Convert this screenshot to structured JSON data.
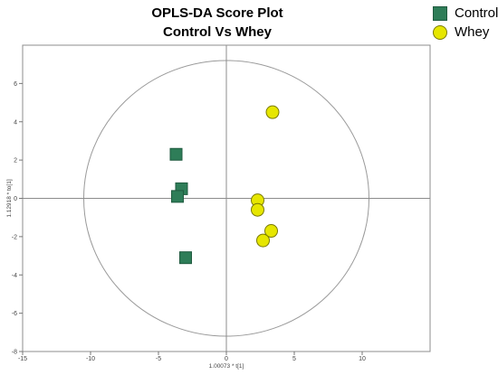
{
  "chart_data": {
    "type": "scatter",
    "title": "OPLS-DA Score Plot",
    "subtitle": "Control Vs Whey",
    "xlabel": "1.00073 * t[1]",
    "ylabel": "1.12918 * to[1]",
    "xlim": [
      -15,
      15
    ],
    "ylim": [
      -8,
      8
    ],
    "xticks": [
      -15,
      -10,
      -5,
      0,
      5,
      10
    ],
    "yticks": [
      -8,
      -6,
      -4,
      -2,
      0,
      2,
      4,
      6
    ],
    "grid": false,
    "legend_position": "top-right",
    "ellipse": {
      "rx": 10.5,
      "ry": 7.2
    },
    "series": [
      {
        "name": "Control",
        "marker": "square",
        "color": "#2e7d58",
        "points": [
          {
            "x": -3.7,
            "y": 2.3
          },
          {
            "x": -3.3,
            "y": 0.5
          },
          {
            "x": -3.6,
            "y": 0.1
          },
          {
            "x": -3.0,
            "y": -3.1
          }
        ]
      },
      {
        "name": "Whey",
        "marker": "circle",
        "color": "#e6e600",
        "points": [
          {
            "x": 3.4,
            "y": 4.5
          },
          {
            "x": 2.3,
            "y": -0.1
          },
          {
            "x": 2.3,
            "y": -0.6
          },
          {
            "x": 3.3,
            "y": -1.7
          },
          {
            "x": 2.7,
            "y": -2.2
          }
        ]
      }
    ]
  }
}
